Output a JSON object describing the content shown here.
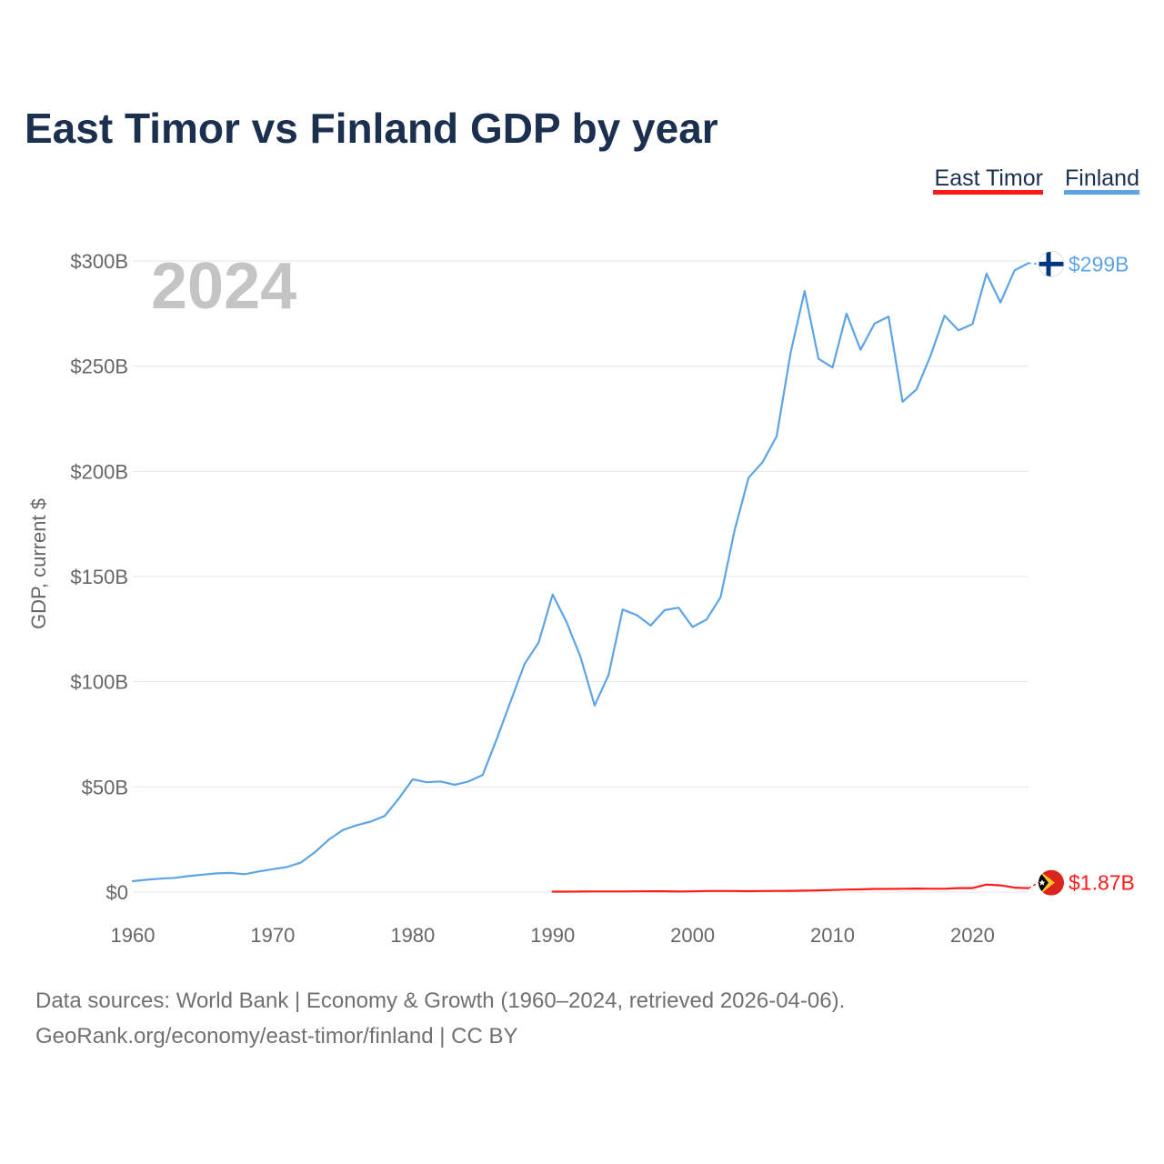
{
  "colors": {
    "east_timor": "#ff1a1a",
    "finland": "#5ea4e3",
    "title": "#1b2f4e",
    "grid": "#e6e6e6",
    "tick": "#666666",
    "year": "#c4c4c4",
    "source": "#707070"
  },
  "chart_data": {
    "type": "line",
    "title": "East Timor vs Finland GDP by year",
    "xlabel": "",
    "ylabel": "GDP, current $",
    "xlim": [
      1960,
      2024
    ],
    "ylim": [
      0,
      300
    ],
    "x_ticks": [
      {
        "value": 1960,
        "label": "1960"
      },
      {
        "value": 1970,
        "label": "1970"
      },
      {
        "value": 1980,
        "label": "1980"
      },
      {
        "value": 1990,
        "label": "1990"
      },
      {
        "value": 2000,
        "label": "2000"
      },
      {
        "value": 2010,
        "label": "2010"
      },
      {
        "value": 2020,
        "label": "2020"
      }
    ],
    "y_ticks": [
      {
        "value": 0,
        "label": "$0"
      },
      {
        "value": 50,
        "label": "$50B"
      },
      {
        "value": 100,
        "label": "$100B"
      },
      {
        "value": 150,
        "label": "$150B"
      },
      {
        "value": 200,
        "label": "$200B"
      },
      {
        "value": 250,
        "label": "$250B"
      },
      {
        "value": 300,
        "label": "$300B"
      }
    ],
    "current_year": "2024",
    "grid": true,
    "legend_position": "top-right",
    "series": [
      {
        "name": "East Timor",
        "color": "#ff1a1a",
        "flag_icon": "east-timor-flag-icon",
        "end_label": "$1.87B",
        "x": [
          1990,
          1991,
          1992,
          1993,
          1994,
          1995,
          1996,
          1997,
          1998,
          1999,
          2000,
          2001,
          2002,
          2003,
          2004,
          2005,
          2006,
          2007,
          2008,
          2009,
          2010,
          2011,
          2012,
          2013,
          2014,
          2015,
          2016,
          2017,
          2018,
          2019,
          2020,
          2021,
          2022,
          2023,
          2024
        ],
        "values": [
          0.2,
          0.2,
          0.25,
          0.3,
          0.3,
          0.32,
          0.35,
          0.37,
          0.38,
          0.25,
          0.35,
          0.5,
          0.5,
          0.5,
          0.45,
          0.5,
          0.55,
          0.6,
          0.7,
          0.8,
          1.0,
          1.2,
          1.3,
          1.5,
          1.5,
          1.6,
          1.7,
          1.6,
          1.6,
          1.9,
          1.9,
          3.6,
          3.2,
          2.1,
          1.87
        ]
      },
      {
        "name": "Finland",
        "color": "#5ea4e3",
        "flag_icon": "finland-flag-icon",
        "end_label": "$299B",
        "x": [
          1960,
          1961,
          1962,
          1963,
          1964,
          1965,
          1966,
          1967,
          1968,
          1969,
          1970,
          1971,
          1972,
          1973,
          1974,
          1975,
          1976,
          1977,
          1978,
          1979,
          1980,
          1981,
          1982,
          1983,
          1984,
          1985,
          1986,
          1987,
          1988,
          1989,
          1990,
          1991,
          1992,
          1993,
          1994,
          1995,
          1996,
          1997,
          1998,
          1999,
          2000,
          2001,
          2002,
          2003,
          2004,
          2005,
          2006,
          2007,
          2008,
          2009,
          2010,
          2011,
          2012,
          2013,
          2014,
          2015,
          2016,
          2017,
          2018,
          2019,
          2020,
          2021,
          2022,
          2023,
          2024
        ],
        "values": [
          5.2,
          5.9,
          6.4,
          6.8,
          7.6,
          8.3,
          8.9,
          9.1,
          8.5,
          9.8,
          10.9,
          11.9,
          14.0,
          18.9,
          24.9,
          29.5,
          31.8,
          33.5,
          36.2,
          44.4,
          53.6,
          52.2,
          52.6,
          51.0,
          52.6,
          55.7,
          72.7,
          90.6,
          108.5,
          118.6,
          141.5,
          128.3,
          111.6,
          88.7,
          103.3,
          134.3,
          131.7,
          126.7,
          134.0,
          135.2,
          126.0,
          129.6,
          140.2,
          172.0,
          197.0,
          204.4,
          216.6,
          256.4,
          285.7,
          253.5,
          249.4,
          275.0,
          257.8,
          270.2,
          273.6,
          233.1,
          239.0,
          255.0,
          274.0,
          267.0,
          270.0,
          294.0,
          280.3,
          295.5,
          299.0
        ]
      }
    ]
  },
  "legend": [
    {
      "label": "East Timor"
    },
    {
      "label": "Finland"
    }
  ],
  "source": {
    "line1": "Data sources: World Bank | Economy & Growth (1960–2024, retrieved 2026-04-06).",
    "line2": "GeoRank.org/economy/east-timor/finland | CC BY"
  }
}
